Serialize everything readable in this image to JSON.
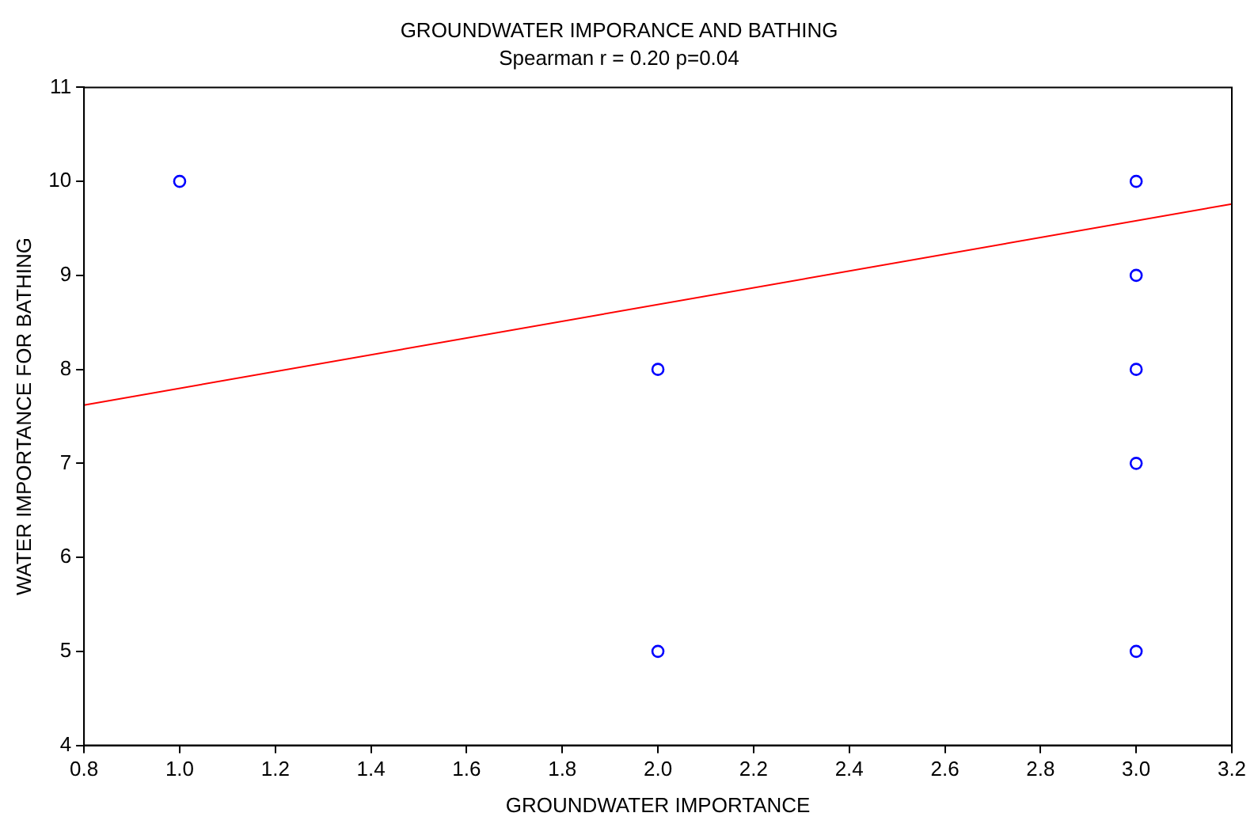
{
  "chart_data": {
    "type": "scatter",
    "title": "GROUNDWATER IMPORANCE AND BATHING",
    "subtitle": "Spearman r = 0.20 p=0.04",
    "xlabel": "GROUNDWATER IMPORTANCE",
    "ylabel": "WATER IMPORTANCE FOR BATHING",
    "series": [
      {
        "color": "#0000ff",
        "marker": "circle",
        "x": [
          1,
          2,
          2,
          3,
          3,
          3,
          3,
          3
        ],
        "values": [
          10,
          8,
          5,
          10,
          9,
          8,
          7,
          5
        ]
      },
      {
        "type": "line",
        "color": "#ff0000",
        "marker": "none",
        "line_style": "solid",
        "x": [
          0.8,
          3.2
        ],
        "values": [
          7.62,
          9.76
        ]
      }
    ],
    "xlim": [
      0.8,
      3.2
    ],
    "xticks": [
      0.8,
      {
        "value": 1,
        "label": "1.0"
      },
      1.2,
      1.4,
      1.6,
      1.8,
      {
        "value": 2,
        "label": "2.0"
      },
      2.2,
      2.4,
      2.6,
      2.8,
      {
        "value": 3,
        "label": "3.0"
      },
      3.2
    ],
    "ylim": [
      4,
      11
    ],
    "yticks": [
      4,
      5,
      6,
      7,
      8,
      9,
      10,
      11
    ],
    "grid": false,
    "legend": false
  }
}
